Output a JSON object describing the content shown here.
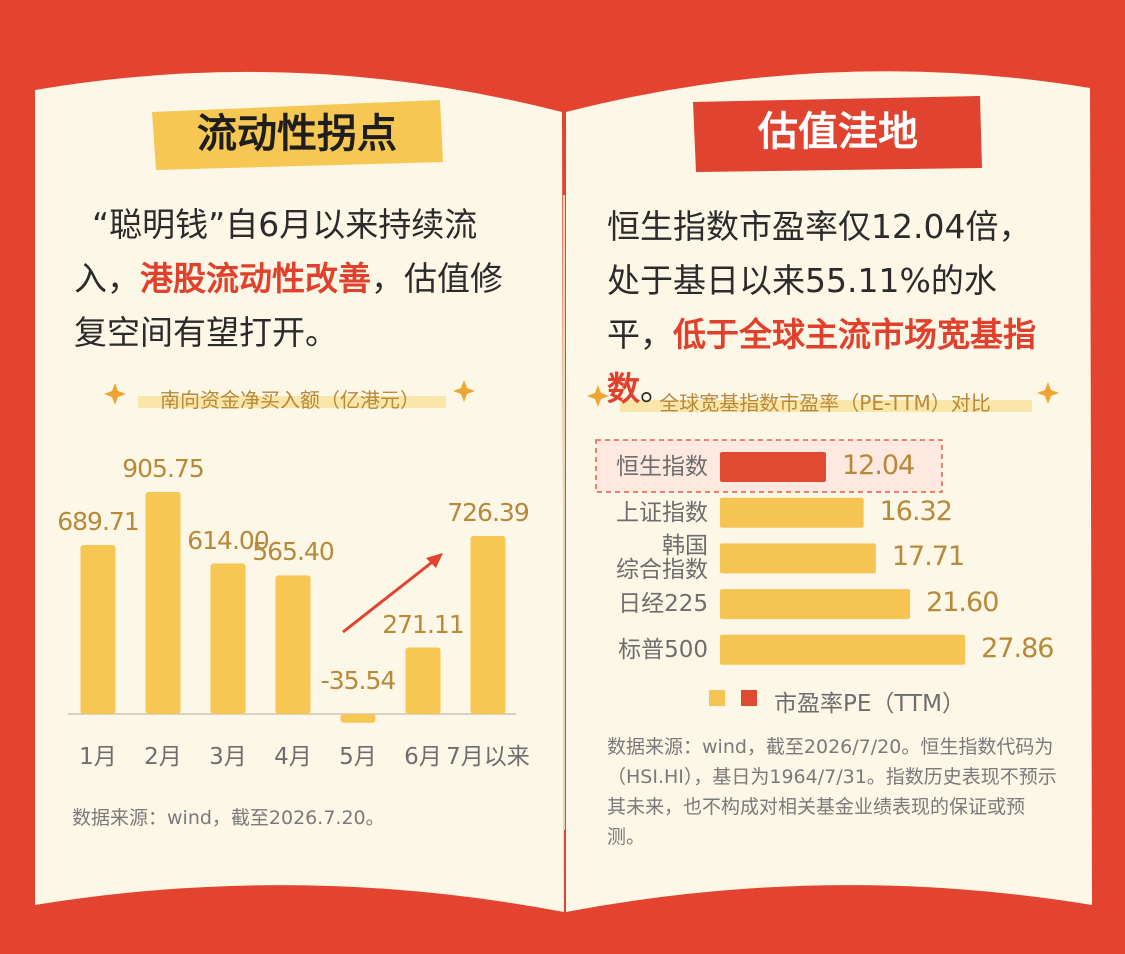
{
  "panels": [
    {
      "heading": "流动性拐点",
      "text": [
        "“聪明钱”自6月以来持续流入，",
        "港股流动性改善",
        "，估值修复空间有望打开。"
      ],
      "source": "数据来源：wind，截至2026.7.20。"
    },
    {
      "heading": "估值洼地",
      "text": [
        "恒生指数市盈率仅12.04倍，处于基日以来55.11%的水平，",
        "低于全球主流市场宽基指数",
        "。"
      ],
      "source": "数据来源：wind，截至2026/7/20。恒生指数代码为（HSI.HI），基日为1964/7/31。指数历史表现不预示其未来，也不构成对相关基金业绩表现的保证或预测。"
    }
  ],
  "chart_data": [
    {
      "type": "bar",
      "title": "南向资金净买入额（亿港元）",
      "categories": [
        "1月",
        "2月",
        "3月",
        "4月",
        "5月",
        "6月",
        "7月以来"
      ],
      "values": [
        689.71,
        905.75,
        614,
        565.4,
        -35.54,
        271.11,
        726.39
      ],
      "value_labels": [
        "689.71",
        "905.75",
        "614.00",
        "565.40",
        "-35.54",
        "271.11",
        "726.39"
      ],
      "color": "#f6c752"
    },
    {
      "type": "hbar",
      "title": "全球宽基指数市盈率（PE-TTM）对比",
      "categories": [
        "恒生指数",
        "上证指数",
        "韩国\n综合指数",
        "日经225",
        "标普500"
      ],
      "series": [
        {
          "name": "市盈率PE（TTM）",
          "values": [
            12.04,
            16.32,
            17.71,
            21.6,
            27.86
          ],
          "value_labels": [
            "12.04",
            "16.32",
            "17.71",
            "21.60",
            "27.86"
          ],
          "colors": [
            "#df4a31",
            "#f5c453",
            "#f5c453",
            "#f5c453",
            "#f5c453"
          ]
        }
      ]
    }
  ]
}
